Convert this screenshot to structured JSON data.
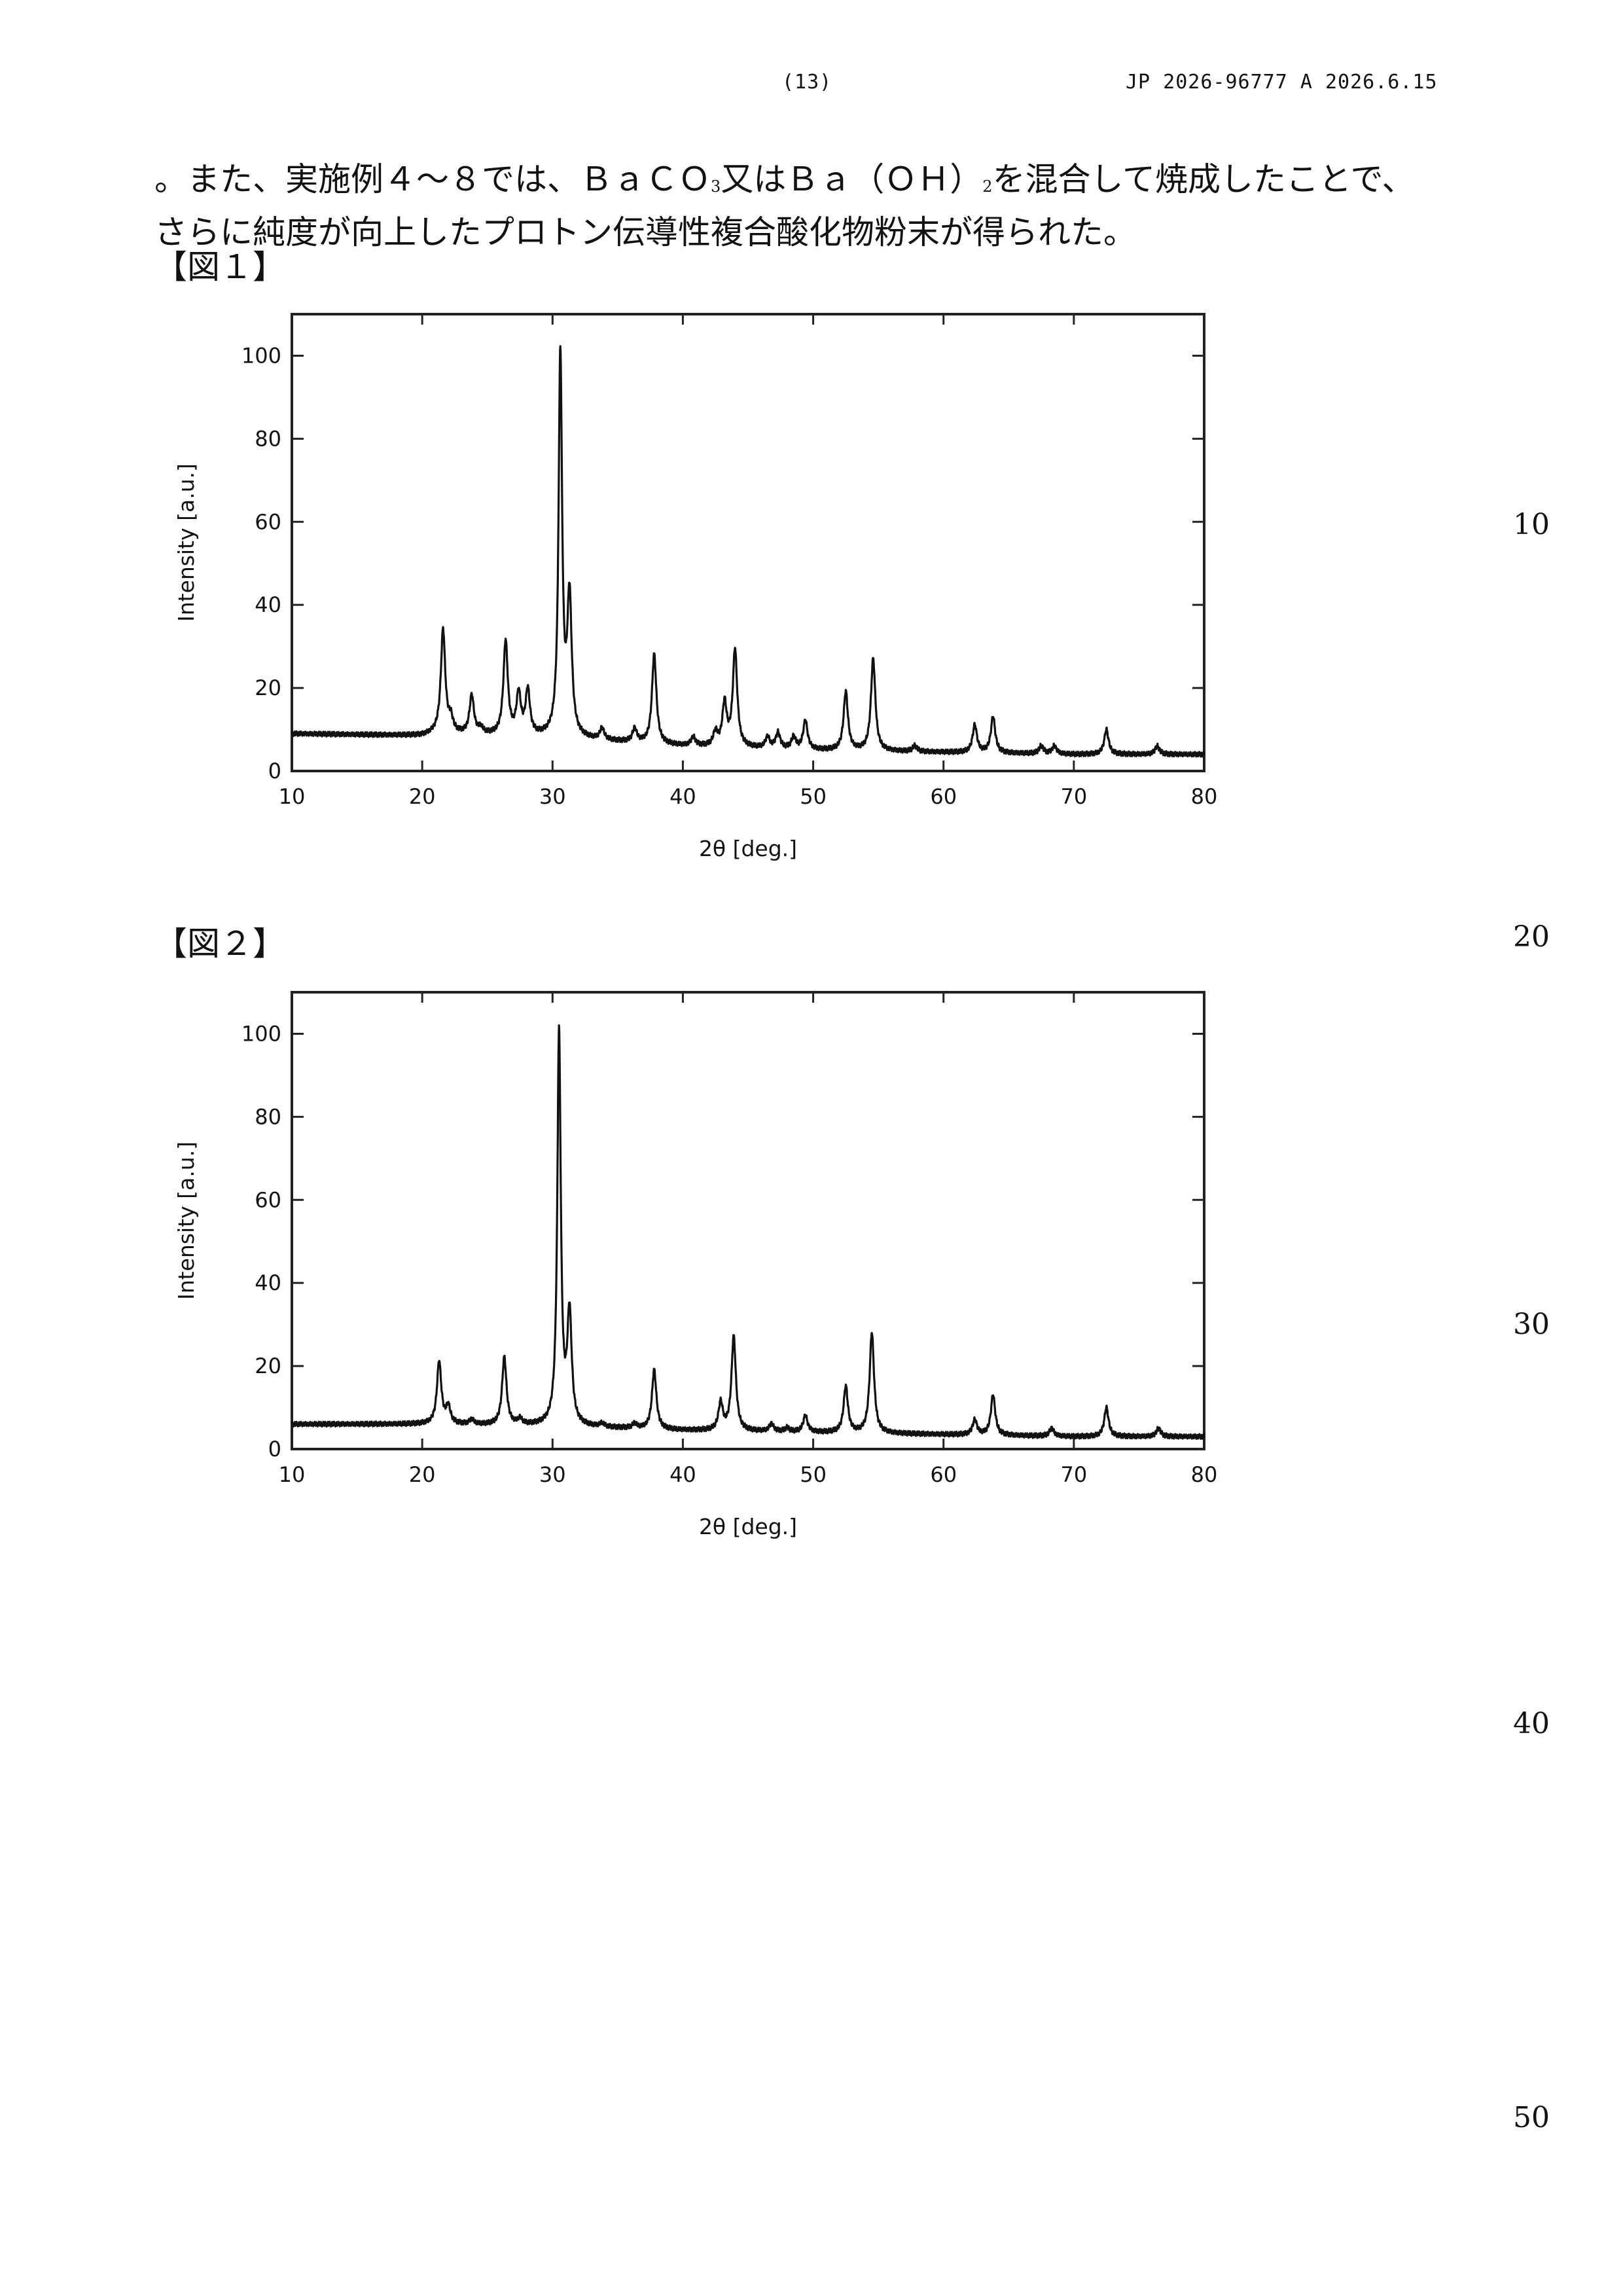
{
  "header": {
    "page_number": "(13)",
    "doc_id": "JP  2026-96777  A  2026.6.15"
  },
  "paragraph": {
    "line1_pre": "。また、実施例４～８では、ＢａＣＯ",
    "line1_sub1": "3",
    "line1_mid": "又はＢａ（ＯＨ）",
    "line1_sub2": "2",
    "line1_post": "を混合して焼成したことで、",
    "line2": "さらに純度が向上したプロトン伝導性複合酸化物粉末が得られた。"
  },
  "figures": [
    {
      "label": "【図１】"
    },
    {
      "label": "【図２】"
    }
  ],
  "line_numbers": [
    "10",
    "20",
    "30",
    "40",
    "50"
  ],
  "chart_data": [
    {
      "type": "line",
      "title": "",
      "xlabel": "2θ [deg.]",
      "ylabel": "Intensity [a.u.]",
      "xlim": [
        10,
        80
      ],
      "ylim": [
        0,
        110
      ],
      "xticks": [
        10,
        20,
        30,
        40,
        50,
        60,
        70,
        80
      ],
      "yticks": [
        0,
        20,
        40,
        60,
        80,
        100
      ],
      "grid": false,
      "baseline": [
        [
          10,
          9
        ],
        [
          20,
          8.5
        ],
        [
          21,
          9
        ],
        [
          30,
          8
        ],
        [
          40,
          6
        ],
        [
          50,
          5
        ],
        [
          60,
          4.5
        ],
        [
          70,
          4
        ],
        [
          80,
          4
        ]
      ],
      "peaks": [
        {
          "x": 21.6,
          "y": 34
        },
        {
          "x": 22.2,
          "y": 12
        },
        {
          "x": 23.8,
          "y": 18
        },
        {
          "x": 24.5,
          "y": 10
        },
        {
          "x": 26.4,
          "y": 31
        },
        {
          "x": 27.4,
          "y": 18
        },
        {
          "x": 28.1,
          "y": 19
        },
        {
          "x": 30.6,
          "y": 100
        },
        {
          "x": 31.3,
          "y": 41
        },
        {
          "x": 33.8,
          "y": 10
        },
        {
          "x": 36.3,
          "y": 10
        },
        {
          "x": 37.8,
          "y": 28
        },
        {
          "x": 40.8,
          "y": 8
        },
        {
          "x": 42.5,
          "y": 9
        },
        {
          "x": 43.2,
          "y": 16
        },
        {
          "x": 44.0,
          "y": 29
        },
        {
          "x": 46.5,
          "y": 8
        },
        {
          "x": 47.3,
          "y": 9
        },
        {
          "x": 48.5,
          "y": 8
        },
        {
          "x": 49.4,
          "y": 12
        },
        {
          "x": 52.5,
          "y": 19
        },
        {
          "x": 54.6,
          "y": 27
        },
        {
          "x": 57.8,
          "y": 6
        },
        {
          "x": 62.4,
          "y": 11
        },
        {
          "x": 63.8,
          "y": 13
        },
        {
          "x": 67.5,
          "y": 6
        },
        {
          "x": 68.5,
          "y": 6
        },
        {
          "x": 72.5,
          "y": 10
        },
        {
          "x": 76.4,
          "y": 6
        }
      ]
    },
    {
      "type": "line",
      "title": "",
      "xlabel": "2θ [deg.]",
      "ylabel": "Intensity [a.u.]",
      "xlim": [
        10,
        80
      ],
      "ylim": [
        0,
        110
      ],
      "xticks": [
        10,
        20,
        30,
        40,
        50,
        60,
        70,
        80
      ],
      "yticks": [
        0,
        20,
        40,
        60,
        80,
        100
      ],
      "grid": false,
      "baseline": [
        [
          10,
          6
        ],
        [
          20,
          6
        ],
        [
          21,
          6
        ],
        [
          30,
          5.5
        ],
        [
          40,
          4.5
        ],
        [
          50,
          4
        ],
        [
          60,
          3.5
        ],
        [
          70,
          3
        ],
        [
          80,
          3
        ]
      ],
      "peaks": [
        {
          "x": 21.3,
          "y": 21
        },
        {
          "x": 22.0,
          "y": 10
        },
        {
          "x": 23.8,
          "y": 7
        },
        {
          "x": 26.3,
          "y": 22
        },
        {
          "x": 27.5,
          "y": 7
        },
        {
          "x": 30.5,
          "y": 100
        },
        {
          "x": 31.3,
          "y": 32
        },
        {
          "x": 33.8,
          "y": 6
        },
        {
          "x": 36.3,
          "y": 6
        },
        {
          "x": 37.8,
          "y": 19
        },
        {
          "x": 42.9,
          "y": 11
        },
        {
          "x": 43.9,
          "y": 27
        },
        {
          "x": 46.8,
          "y": 6
        },
        {
          "x": 48.0,
          "y": 5
        },
        {
          "x": 49.4,
          "y": 8
        },
        {
          "x": 52.5,
          "y": 15
        },
        {
          "x": 54.5,
          "y": 28
        },
        {
          "x": 62.4,
          "y": 7
        },
        {
          "x": 63.8,
          "y": 13
        },
        {
          "x": 68.3,
          "y": 5
        },
        {
          "x": 72.5,
          "y": 10
        },
        {
          "x": 76.5,
          "y": 5
        }
      ]
    }
  ]
}
